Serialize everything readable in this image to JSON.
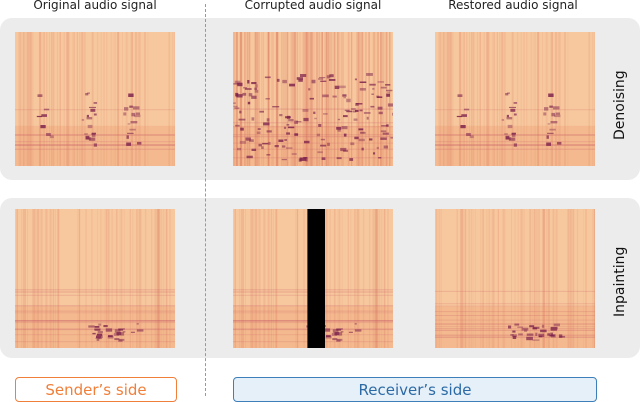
{
  "columns": {
    "original": "Original audio signal",
    "corrupted": "Corrupted audio signal",
    "restored": "Restored audio signal"
  },
  "rows": {
    "denoising": "Denoising",
    "inpainting": "Inpainting"
  },
  "labels": {
    "sender": "Sender’s side",
    "receiver": "Receiver’s side"
  },
  "colors": {
    "spectrogram_base": "#f7c79d",
    "spectrogram_dark": "#7a1f4a",
    "sender_accent": "#f07f3a",
    "receiver_accent": "#3d7fb8",
    "mask": "#000000"
  }
}
